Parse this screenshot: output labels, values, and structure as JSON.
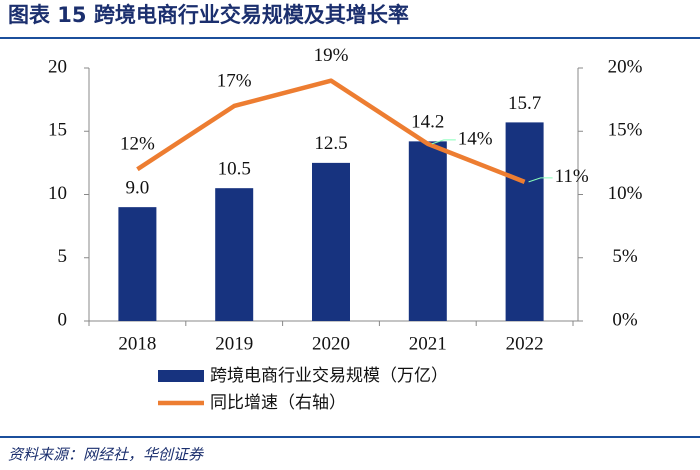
{
  "chart_data": {
    "type": "bar-line",
    "title": "图表 15    跨境电商行业交易规模及其增长率",
    "source": "资料来源：网经社，华创证券",
    "categories": [
      "2018",
      "2019",
      "2020",
      "2021",
      "2022"
    ],
    "series": [
      {
        "name": "跨境电商行业交易规模（万亿）",
        "type": "bar",
        "color": "#17337f",
        "values": [
          9.0,
          10.5,
          12.5,
          14.2,
          15.7
        ],
        "value_labels": [
          "9.0",
          "10.5",
          "12.5",
          "14.2",
          "15.7"
        ]
      },
      {
        "name": "同比增速（右轴）",
        "type": "line",
        "axis": "y2",
        "color": "#ed7d31",
        "values": [
          12,
          17,
          19,
          14,
          11
        ],
        "value_labels": [
          "12%",
          "17%",
          "19%",
          "14%",
          "11%"
        ]
      }
    ],
    "ylim": [
      0,
      20
    ],
    "yticks": [
      0,
      5,
      10,
      15,
      20
    ],
    "y2lim": [
      0,
      20
    ],
    "y2ticks": [
      {
        "value": 0,
        "label": "0%"
      },
      {
        "value": 5,
        "label": "5%"
      },
      {
        "value": 10,
        "label": "10%"
      },
      {
        "value": 15,
        "label": "15%"
      },
      {
        "value": 20,
        "label": "20%"
      }
    ],
    "legend": "bottom",
    "grid": false
  }
}
